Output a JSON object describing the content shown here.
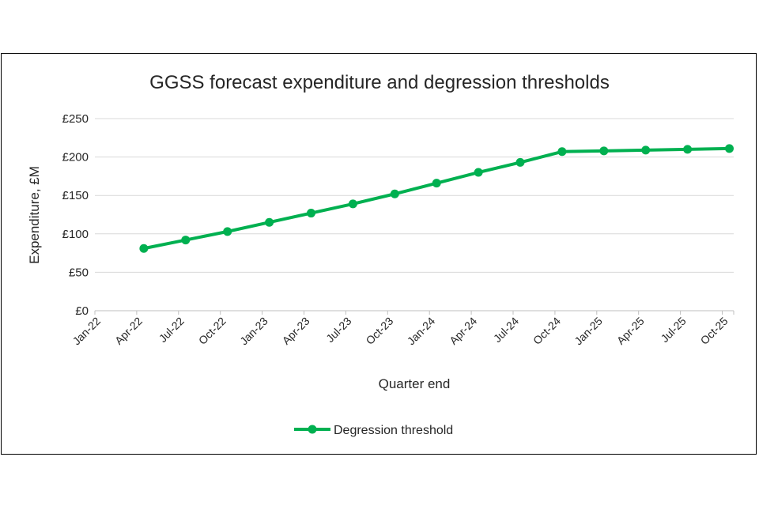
{
  "chart_data": {
    "type": "line",
    "title": "GGSS forecast expenditure and degression thresholds",
    "xlabel": "Quarter end",
    "ylabel": "Expenditure, £M",
    "ylim": [
      0,
      250
    ],
    "yticks": [
      0,
      50,
      100,
      150,
      200,
      250
    ],
    "ytick_labels": [
      "£0",
      "£50",
      "£100",
      "£150",
      "£200",
      "£250"
    ],
    "categories": [
      "Jan-22",
      "Apr-22",
      "Jul-22",
      "Oct-22",
      "Jan-23",
      "Apr-23",
      "Jul-23",
      "Oct-23",
      "Jan-24",
      "Apr-24",
      "Jul-24",
      "Oct-24",
      "Jan-25",
      "Apr-25",
      "Jul-25",
      "Oct-25"
    ],
    "grid": true,
    "legend_position": "bottom",
    "series": [
      {
        "name": "Degression threshold",
        "color": "#00B050",
        "x": [
          "Apr-22",
          "Jul-22",
          "Oct-22",
          "Jan-23",
          "Apr-23",
          "Jul-23",
          "Oct-23",
          "Jan-24",
          "Apr-24",
          "Jul-24",
          "Oct-24",
          "Jan-25",
          "Apr-25",
          "Jul-25",
          "Oct-25"
        ],
        "values": [
          81,
          92,
          103,
          115,
          127,
          139,
          152,
          166,
          180,
          193,
          207,
          208,
          209,
          210,
          211
        ]
      }
    ]
  }
}
